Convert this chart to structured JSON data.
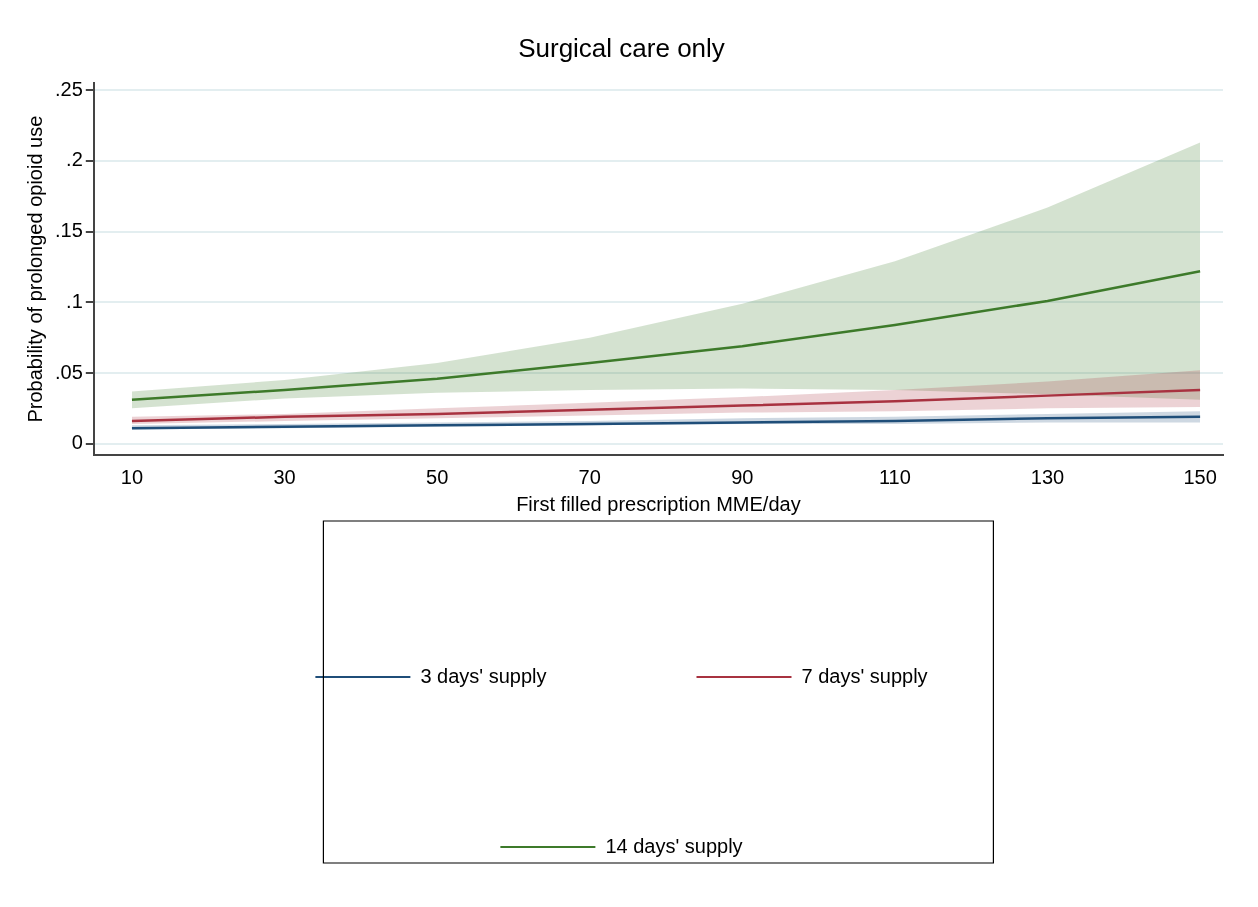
{
  "chart_data": {
    "type": "line",
    "title": "Surgical care only",
    "xlabel": "First filled prescription MME/day",
    "ylabel": "Probability of prolonged opioid use",
    "x": [
      10,
      30,
      50,
      70,
      90,
      110,
      130,
      150
    ],
    "xlim": [
      5,
      153
    ],
    "xticks": [
      10,
      30,
      50,
      70,
      90,
      110,
      130,
      150
    ],
    "ylim": [
      -0.008,
      0.255
    ],
    "yticks": [
      {
        "value": 0,
        "label": "0"
      },
      {
        "value": 0.05,
        "label": ".05"
      },
      {
        "value": 0.1,
        "label": ".1"
      },
      {
        "value": 0.15,
        "label": ".15"
      },
      {
        "value": 0.2,
        "label": ".2"
      },
      {
        "value": 0.25,
        "label": ".25"
      }
    ],
    "grid": "y",
    "legend": "bottom",
    "marker": "none",
    "line_style": "solid",
    "series": [
      {
        "name": "3 days' supply",
        "color": "#1f4e79",
        "values": [
          0.011,
          0.012,
          0.013,
          0.014,
          0.015,
          0.016,
          0.018,
          0.019
        ],
        "lower": [
          0.01,
          0.011,
          0.012,
          0.013,
          0.014,
          0.014,
          0.015,
          0.015
        ],
        "upper": [
          0.013,
          0.014,
          0.015,
          0.016,
          0.018,
          0.019,
          0.021,
          0.023
        ]
      },
      {
        "name": "7 days' supply",
        "color": "#a83240",
        "values": [
          0.016,
          0.019,
          0.021,
          0.024,
          0.027,
          0.03,
          0.034,
          0.038
        ],
        "lower": [
          0.014,
          0.016,
          0.018,
          0.02,
          0.022,
          0.023,
          0.025,
          0.026
        ],
        "upper": [
          0.019,
          0.021,
          0.025,
          0.029,
          0.033,
          0.038,
          0.044,
          0.052
        ]
      },
      {
        "name": "14 days' supply",
        "color": "#3d7a2a",
        "values": [
          0.031,
          0.038,
          0.046,
          0.057,
          0.069,
          0.084,
          0.101,
          0.122
        ],
        "lower": [
          0.025,
          0.032,
          0.036,
          0.038,
          0.039,
          0.038,
          0.035,
          0.031
        ],
        "upper": [
          0.037,
          0.045,
          0.057,
          0.075,
          0.099,
          0.129,
          0.167,
          0.213
        ]
      }
    ]
  }
}
